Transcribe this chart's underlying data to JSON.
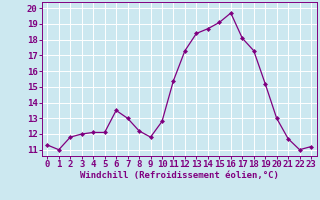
{
  "x": [
    0,
    1,
    2,
    3,
    4,
    5,
    6,
    7,
    8,
    9,
    10,
    11,
    12,
    13,
    14,
    15,
    16,
    17,
    18,
    19,
    20,
    21,
    22,
    23
  ],
  "y": [
    11.3,
    11.0,
    11.8,
    12.0,
    12.1,
    12.1,
    13.5,
    13.0,
    12.2,
    11.8,
    12.8,
    15.4,
    17.3,
    18.4,
    18.7,
    19.1,
    19.7,
    18.1,
    17.3,
    15.2,
    13.0,
    11.7,
    11.0,
    11.2
  ],
  "line_color": "#800080",
  "marker": "D",
  "marker_size": 2.0,
  "bg_color": "#cce8f0",
  "grid_color": "#ffffff",
  "xlabel": "Windchill (Refroidissement éolien,°C)",
  "ylabel_ticks": [
    11,
    12,
    13,
    14,
    15,
    16,
    17,
    18,
    19,
    20
  ],
  "xlim": [
    -0.5,
    23.5
  ],
  "ylim": [
    10.6,
    20.4
  ],
  "xlabel_fontsize": 6.5,
  "tick_fontsize": 6.5,
  "tick_color": "#800080",
  "line_width": 0.9
}
